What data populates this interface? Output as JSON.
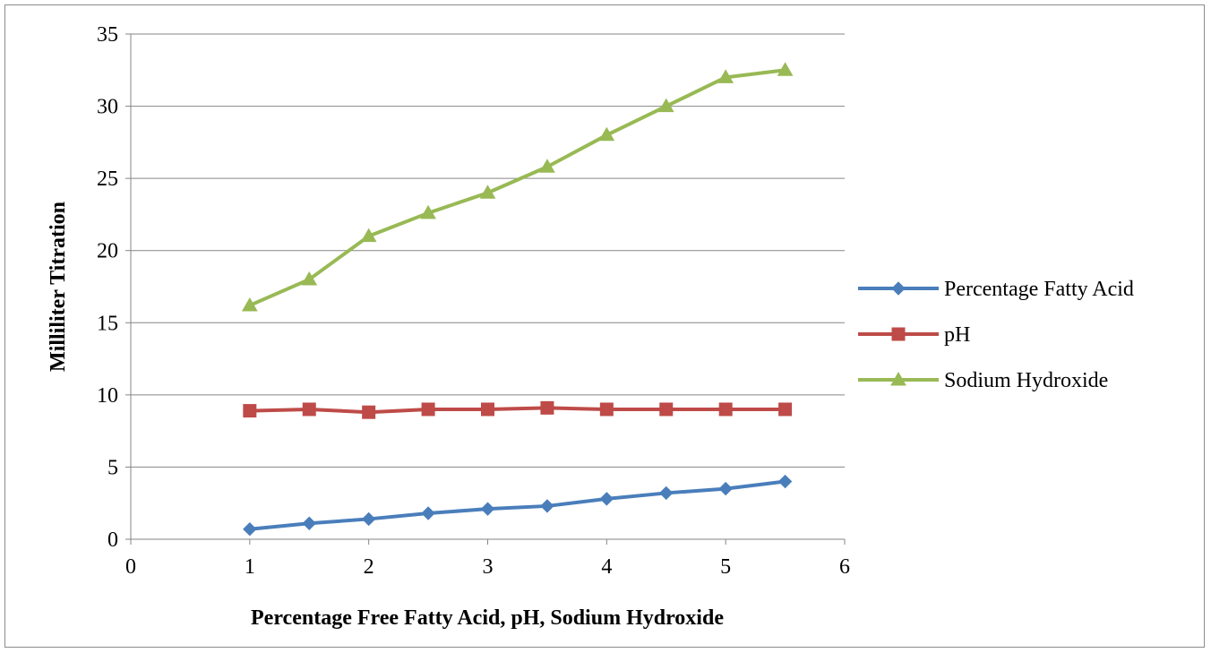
{
  "chart_data": {
    "type": "line",
    "title": "",
    "xlabel": "Percentage Free Fatty Acid, pH, Sodium Hydroxide",
    "ylabel": "Milliliter Titration",
    "xlim": [
      0,
      6
    ],
    "ylim": [
      0,
      35
    ],
    "x_ticks": [
      "0",
      "1",
      "2",
      "3",
      "4",
      "5",
      "6"
    ],
    "y_ticks": [
      "0",
      "5",
      "10",
      "15",
      "20",
      "25",
      "30",
      "35"
    ],
    "grid": "horizontal",
    "legend_position": "right",
    "x": [
      1,
      1.5,
      2,
      2.5,
      3,
      3.5,
      4,
      4.5,
      5,
      5.5
    ],
    "series": [
      {
        "name": "Percentage Fatty Acid",
        "color": "#4a7ebb",
        "marker": "diamond",
        "values": [
          0.7,
          1.1,
          1.4,
          1.8,
          2.1,
          2.3,
          2.8,
          3.2,
          3.5,
          4.0
        ]
      },
      {
        "name": "pH",
        "color": "#be4b48",
        "marker": "square",
        "values": [
          8.9,
          9.0,
          8.8,
          9.0,
          9.0,
          9.1,
          9.0,
          9.0,
          9.0,
          9.0
        ]
      },
      {
        "name": "Sodium Hydroxide",
        "color": "#98b954",
        "marker": "triangle",
        "values": [
          16.2,
          18.0,
          21.0,
          22.6,
          24.0,
          25.8,
          28.0,
          30.0,
          32.0,
          32.5
        ]
      }
    ]
  }
}
